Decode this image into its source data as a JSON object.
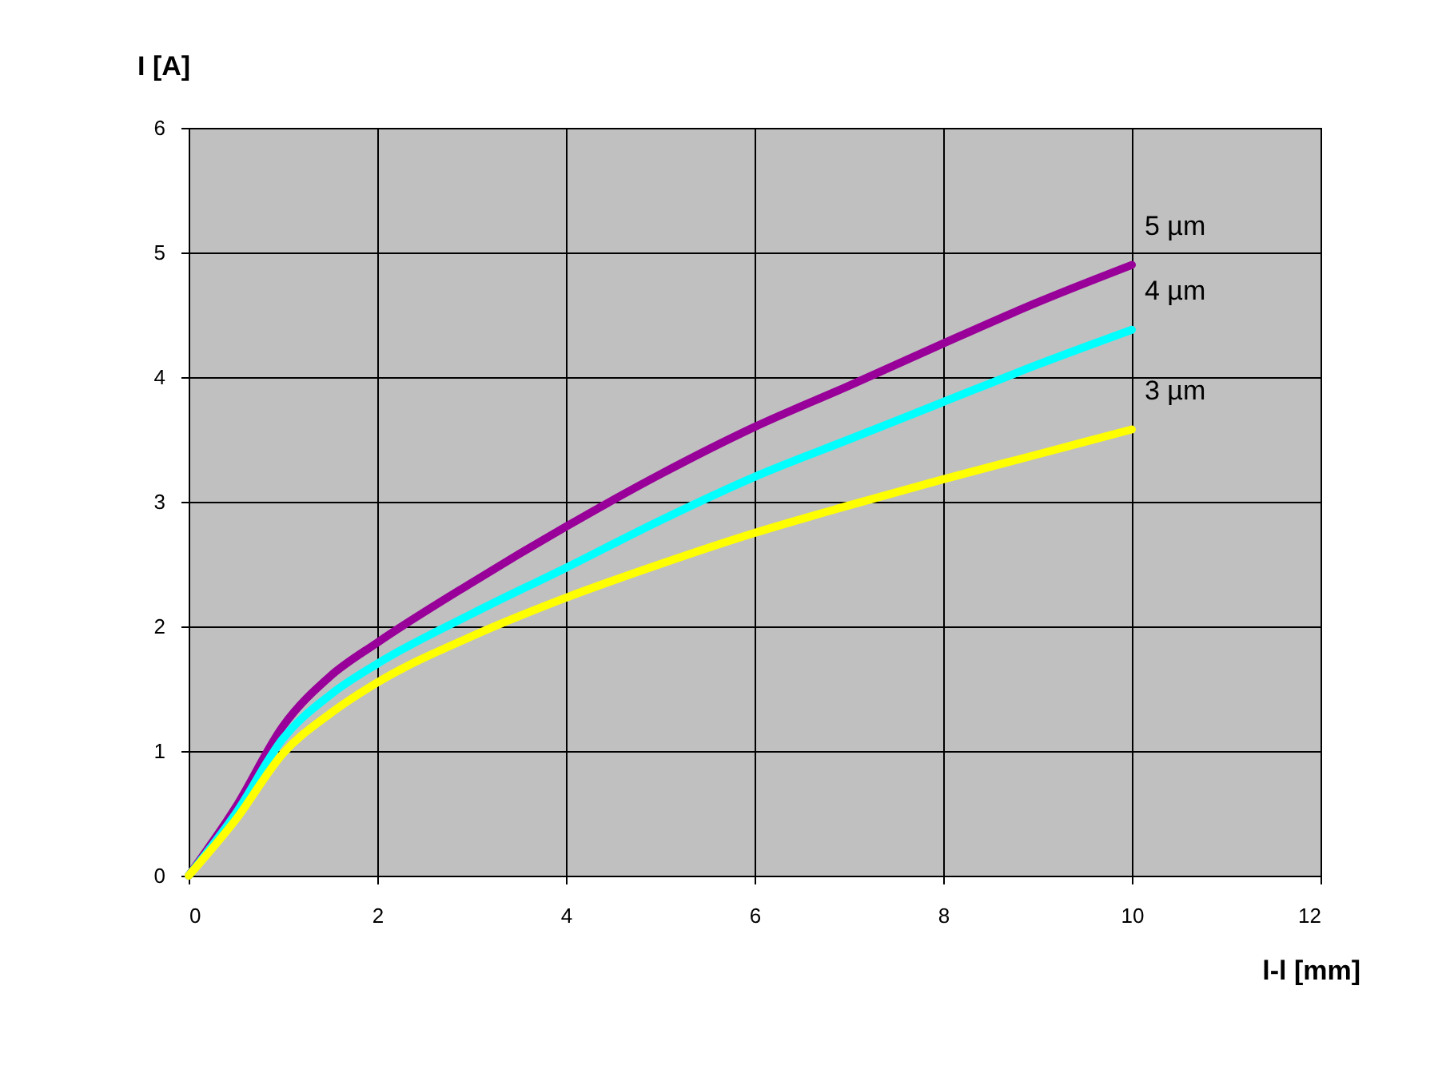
{
  "chart_data": {
    "type": "line",
    "xlabel": "l-l [mm]",
    "ylabel": "I [A]",
    "xlim": [
      0,
      12
    ],
    "xticks": [
      0,
      2,
      4,
      6,
      8,
      10,
      12
    ],
    "ylim": [
      0,
      6
    ],
    "yticks": [
      0,
      1,
      2,
      3,
      4,
      5,
      6
    ],
    "grid": true,
    "legend": false,
    "marker": "none",
    "line_style": "solid",
    "x": [
      0,
      0.5,
      1,
      1.5,
      2,
      3,
      4,
      5,
      6,
      7,
      8,
      9,
      10
    ],
    "series": [
      {
        "name": "5 µm",
        "color": "#990099",
        "values": [
          0,
          0.55,
          1.2,
          1.6,
          1.87,
          2.35,
          2.8,
          3.22,
          3.6,
          3.93,
          4.27,
          4.6,
          4.9
        ]
      },
      {
        "name": "4 µm",
        "color": "#00ffff",
        "values": [
          0,
          0.5,
          1.1,
          1.45,
          1.7,
          2.1,
          2.47,
          2.85,
          3.2,
          3.5,
          3.8,
          4.1,
          4.38
        ]
      },
      {
        "name": "3 µm",
        "color": "#ffff00",
        "values": [
          0,
          0.45,
          0.98,
          1.3,
          1.55,
          1.92,
          2.23,
          2.5,
          2.75,
          2.97,
          3.18,
          3.38,
          3.58
        ]
      }
    ]
  }
}
